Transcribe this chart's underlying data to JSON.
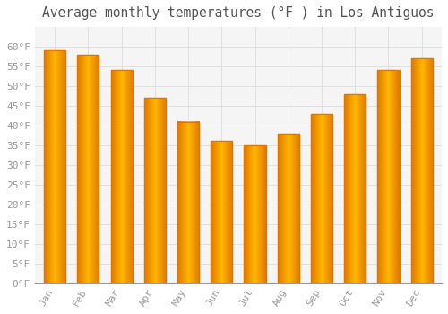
{
  "title": "Average monthly temperatures (°F ) in Los Antiguos",
  "months": [
    "Jan",
    "Feb",
    "Mar",
    "Apr",
    "May",
    "Jun",
    "Jul",
    "Aug",
    "Sep",
    "Oct",
    "Nov",
    "Dec"
  ],
  "values": [
    59,
    58,
    54,
    47,
    41,
    36,
    35,
    38,
    43,
    48,
    54,
    57
  ],
  "bar_color_center": "#FFB700",
  "bar_color_edge": "#E07800",
  "background_color": "#FFFFFF",
  "plot_bg_color": "#F5F5F5",
  "grid_color": "#DDDDDD",
  "tick_label_color": "#999999",
  "title_color": "#555555",
  "ylim": [
    0,
    65
  ],
  "yticks": [
    0,
    5,
    10,
    15,
    20,
    25,
    30,
    35,
    40,
    45,
    50,
    55,
    60
  ],
  "ytick_labels": [
    "0°F",
    "5°F",
    "10°F",
    "15°F",
    "20°F",
    "25°F",
    "30°F",
    "35°F",
    "40°F",
    "45°F",
    "50°F",
    "55°F",
    "60°F"
  ],
  "title_fontsize": 10.5,
  "tick_fontsize": 8,
  "bar_width": 0.65
}
